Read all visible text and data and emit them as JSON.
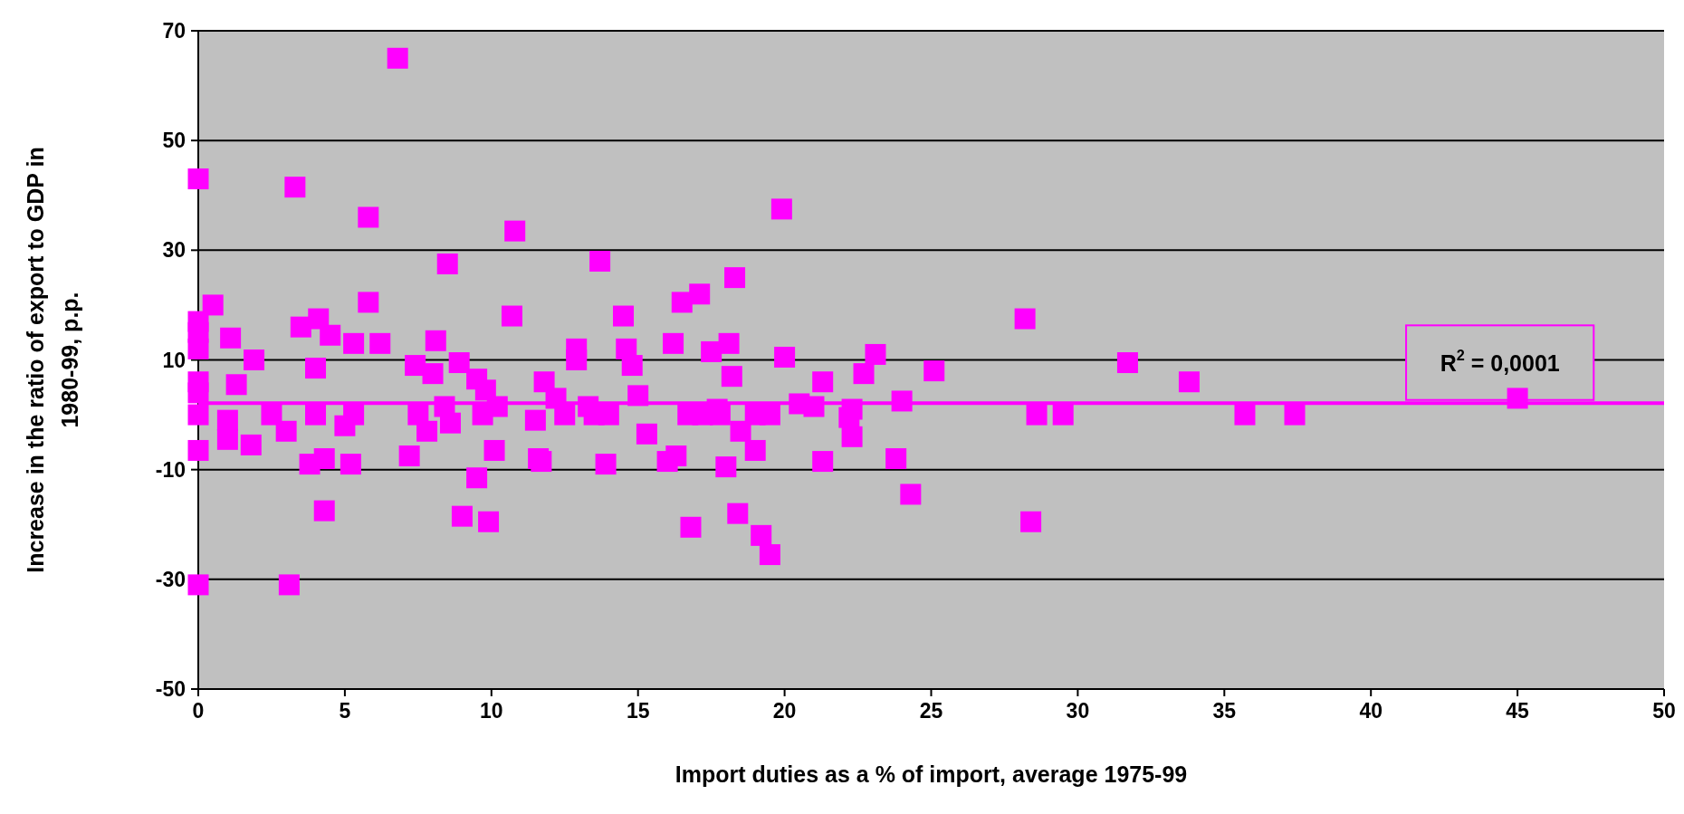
{
  "chart_data": {
    "type": "scatter",
    "xlabel": "Import duties as a  % of import, average 1975-99",
    "ylabel": "Increase in the ratio of export to GDP in 1980-99, p.p.",
    "xlim": [
      0,
      50
    ],
    "ylim": [
      -50,
      70
    ],
    "xticks": [
      0,
      5,
      10,
      15,
      20,
      25,
      30,
      35,
      40,
      45,
      50
    ],
    "yticks": [
      -50,
      -30,
      -10,
      10,
      30,
      50,
      70
    ],
    "grid": "y",
    "annotations": [
      "R$^{2}$ = 0,0001"
    ],
    "series": [
      {
        "marker": "square",
        "color": "#ff00ff",
        "x": [
          0,
          0,
          0,
          0,
          0,
          0,
          0,
          0,
          0,
          0.5,
          1,
          1.1,
          1.3,
          1,
          1.8,
          1.9,
          2.5,
          3,
          3.1,
          3.3,
          3.5,
          3.8,
          4,
          4.1,
          4.3,
          4.3,
          4.5,
          4,
          5,
          5.2,
          5.3,
          5.3,
          5.8,
          5.8,
          6.2,
          6.8,
          7.2,
          7.4,
          7.5,
          7.8,
          8,
          8.1,
          8.4,
          8.5,
          8.6,
          8.9,
          9,
          9.5,
          9.5,
          9.7,
          9.8,
          9.9,
          10.1,
          10.2,
          10.8,
          10.7,
          11.5,
          11.6,
          11.7,
          11.8,
          12.2,
          12.5,
          12.9,
          12.9,
          13.3,
          13.5,
          13.7,
          13.9,
          14,
          14.5,
          14.6,
          14.8,
          15,
          15.3,
          16,
          16.2,
          16.3,
          16.5,
          16.7,
          16.8,
          17.2,
          17.1,
          17.5,
          17.7,
          17.8,
          18,
          18.1,
          18.2,
          18.3,
          18.4,
          18.5,
          19,
          19,
          19.2,
          19.5,
          19.5,
          19.9,
          20,
          20.5,
          21,
          21.3,
          21.3,
          22.2,
          22.3,
          22.3,
          22.7,
          23.1,
          23.8,
          24,
          24.3,
          25.1,
          28.2,
          28.4,
          28.6,
          29.5,
          31.7,
          33.8,
          35.7,
          37.4,
          45
        ],
        "values": [
          43,
          17,
          15,
          12,
          6,
          4,
          0,
          -6.5,
          -31,
          20,
          -1,
          14,
          5.5,
          -4.5,
          -5.5,
          10,
          0,
          -3,
          -31,
          41.5,
          16,
          -9,
          8.5,
          17.5,
          -8,
          -17.5,
          14.5,
          0,
          -2,
          -9,
          0,
          13,
          36,
          20.5,
          13,
          65,
          -7.5,
          9,
          0,
          -3,
          7.5,
          13.5,
          1.5,
          27.5,
          -1.5,
          9.5,
          -18.5,
          6.5,
          -11.5,
          0,
          4.5,
          -19.5,
          -6.5,
          1.5,
          33.5,
          18,
          -1,
          -8,
          -8.5,
          6,
          3,
          0,
          12,
          10,
          1.5,
          0,
          28,
          -9,
          0,
          18,
          12,
          9,
          3.5,
          -3.5,
          -8.5,
          13,
          -7.5,
          20.5,
          0,
          -20.5,
          0,
          22,
          11.5,
          1,
          0,
          -9.5,
          13,
          7,
          25,
          -18,
          -3,
          -6.5,
          0,
          -22,
          -25.5,
          0,
          37.5,
          10.5,
          2,
          1.5,
          6,
          -8.5,
          -0.5,
          1,
          -4,
          7.5,
          11,
          -8,
          2.5,
          -14.5,
          8,
          17.5,
          -19.5,
          0,
          0,
          9.5,
          6,
          0,
          0,
          3
        ]
      },
      {
        "type": "line",
        "color": "#ff00ff",
        "x": [
          0,
          50
        ],
        "values": [
          2.1,
          2.1
        ]
      }
    ]
  }
}
